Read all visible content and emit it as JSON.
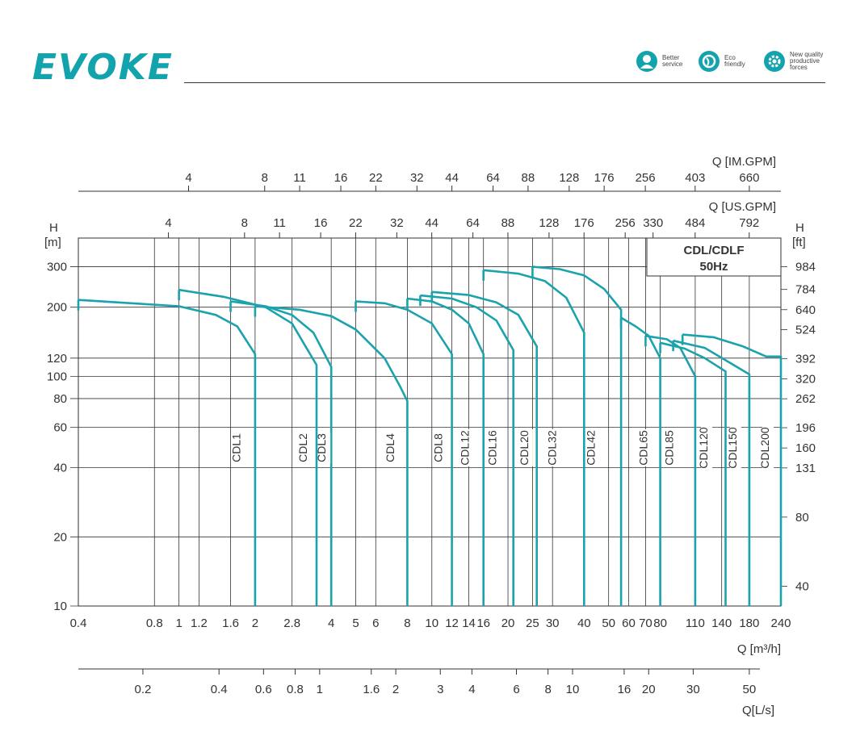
{
  "header": {
    "logo_text": "EVOKE",
    "badges": [
      {
        "icon": "service-person-icon",
        "label_line1": "Better",
        "label_line2": "service",
        "label_line3": ""
      },
      {
        "icon": "eco-globe-icon",
        "label_line1": "Eco",
        "label_line2": "friendly",
        "label_line3": ""
      },
      {
        "icon": "gear-icon",
        "label_line1": "New quality",
        "label_line2": "productive",
        "label_line3": "forces"
      }
    ],
    "accent_color": "#13a3ac"
  },
  "chart_data": {
    "type": "line",
    "title": "CDL/CDLF",
    "subtitle": "50Hz",
    "curve_color": "#1ba3ad",
    "xlabel": "Q [m³/h]",
    "ylabel_left": "H [m]",
    "ylabel_right": "H [ft]",
    "x_scale": "log",
    "y_scale": "log",
    "xlim": [
      0.4,
      240
    ],
    "ylim": [
      10,
      400
    ],
    "x_ticks": [
      "0.4",
      "0.8",
      "1",
      "1.2",
      "1.6",
      "2",
      "2.8",
      "4",
      "5",
      "6",
      "8",
      "10",
      "12",
      "14",
      "16",
      "20",
      "25",
      "30",
      "40",
      "50",
      "60",
      "70",
      "80",
      "110",
      "140",
      "180",
      "240"
    ],
    "x_ticks_values": [
      0.4,
      0.8,
      1,
      1.2,
      1.6,
      2,
      2.8,
      4,
      5,
      6,
      8,
      10,
      12,
      14,
      16,
      20,
      25,
      30,
      40,
      50,
      60,
      70,
      80,
      110,
      140,
      180,
      240
    ],
    "y_ticks_left": [
      "10",
      "20",
      "40",
      "60",
      "80",
      "100",
      "120",
      "200",
      "300"
    ],
    "y_ticks_left_values": [
      10,
      20,
      40,
      60,
      80,
      100,
      120,
      200,
      300
    ],
    "y_ticks_right": [
      "40",
      "80",
      "131",
      "160",
      "196",
      "262",
      "320",
      "392",
      "524",
      "640",
      "784",
      "984"
    ],
    "y_ticks_right_values": [
      40,
      80,
      131,
      160,
      196,
      262,
      320,
      392,
      524,
      640,
      784,
      984
    ],
    "axis_imgpm": {
      "label": "Q [IM.GPM]",
      "ticks": [
        "4",
        "8",
        "11",
        "16",
        "22",
        "32",
        "44",
        "64",
        "88",
        "128",
        "176",
        "256",
        "403",
        "660"
      ],
      "ticks_values": [
        4,
        8,
        11,
        16,
        22,
        32,
        44,
        64,
        88,
        128,
        176,
        256,
        403,
        660
      ]
    },
    "axis_usgpm": {
      "label": "Q [US.GPM]",
      "ticks": [
        "4",
        "8",
        "11",
        "16",
        "22",
        "32",
        "44",
        "64",
        "88",
        "128",
        "176",
        "256",
        "330",
        "484",
        "792"
      ],
      "ticks_values": [
        4,
        8,
        11,
        16,
        22,
        32,
        44,
        64,
        88,
        128,
        176,
        256,
        330,
        484,
        792
      ]
    },
    "axis_ls": {
      "label": "Q[L/s]",
      "ticks": [
        "0.2",
        "0.4",
        "0.6",
        "0.8",
        "1",
        "1.6",
        "2",
        "3",
        "4",
        "6",
        "8",
        "10",
        "16",
        "20",
        "30",
        "50"
      ],
      "ticks_values": [
        0.2,
        0.4,
        0.6,
        0.8,
        1,
        1.6,
        2,
        3,
        4,
        6,
        8,
        10,
        16,
        20,
        30,
        50
      ]
    },
    "series": [
      {
        "name": "CDL1",
        "label_x": 1.75,
        "points": [
          [
            0.4,
            215
          ],
          [
            0.7,
            207
          ],
          [
            1,
            202
          ],
          [
            1.4,
            185
          ],
          [
            1.7,
            165
          ],
          [
            2,
            125
          ]
        ]
      },
      {
        "name": "CDL2",
        "label_x": 3.2,
        "points": [
          [
            1,
            238
          ],
          [
            1.5,
            222
          ],
          [
            2.2,
            200
          ],
          [
            2.8,
            170
          ],
          [
            3.5,
            112
          ]
        ]
      },
      {
        "name": "CDL3",
        "label_x": 3.8,
        "points": [
          [
            1.6,
            212
          ],
          [
            2.2,
            202
          ],
          [
            2.8,
            185
          ],
          [
            3.4,
            155
          ],
          [
            4,
            110
          ]
        ]
      },
      {
        "name": "CDL4",
        "label_x": 7.1,
        "points": [
          [
            2,
            202
          ],
          [
            3,
            195
          ],
          [
            4,
            183
          ],
          [
            5,
            160
          ],
          [
            6.5,
            120
          ],
          [
            7.5,
            90
          ],
          [
            8,
            78
          ]
        ]
      },
      {
        "name": "CDL8",
        "label_x": 11,
        "points": [
          [
            5,
            212
          ],
          [
            6.5,
            208
          ],
          [
            8,
            195
          ],
          [
            10,
            170
          ],
          [
            12,
            125
          ]
        ]
      },
      {
        "name": "CDL12",
        "label_x": 14,
        "points": [
          [
            8,
            218
          ],
          [
            10,
            212
          ],
          [
            12,
            195
          ],
          [
            14,
            170
          ],
          [
            16,
            125
          ]
        ]
      },
      {
        "name": "CDL16",
        "label_x": 18,
        "points": [
          [
            9,
            225
          ],
          [
            12,
            218
          ],
          [
            15,
            200
          ],
          [
            18,
            175
          ],
          [
            21,
            130
          ]
        ]
      },
      {
        "name": "CDL20",
        "label_x": 24,
        "points": [
          [
            10,
            233
          ],
          [
            14,
            226
          ],
          [
            18,
            210
          ],
          [
            22,
            185
          ],
          [
            26,
            135
          ]
        ]
      },
      {
        "name": "CDL32",
        "label_x": 31,
        "points": [
          [
            16,
            290
          ],
          [
            22,
            280
          ],
          [
            28,
            260
          ],
          [
            34,
            220
          ],
          [
            40,
            155
          ]
        ]
      },
      {
        "name": "CDL42",
        "label_x": 44,
        "points": [
          [
            25,
            300
          ],
          [
            32,
            293
          ],
          [
            40,
            275
          ],
          [
            48,
            240
          ],
          [
            56,
            195
          ]
        ]
      },
      {
        "name": "CDL65",
        "label_x": 71,
        "points": [
          [
            56,
            180
          ],
          [
            64,
            165
          ],
          [
            72,
            150
          ],
          [
            80,
            120
          ]
        ]
      },
      {
        "name": "CDL85",
        "label_x": 90,
        "points": [
          [
            70,
            150
          ],
          [
            85,
            145
          ],
          [
            96,
            133
          ],
          [
            110,
            100
          ]
        ]
      },
      {
        "name": "CDL120",
        "label_x": 123,
        "points": [
          [
            80,
            140
          ],
          [
            100,
            132
          ],
          [
            120,
            120
          ],
          [
            145,
            105
          ]
        ]
      },
      {
        "name": "CDL150",
        "label_x": 160,
        "points": [
          [
            90,
            143
          ],
          [
            120,
            133
          ],
          [
            150,
            115
          ],
          [
            180,
            102
          ]
        ]
      },
      {
        "name": "CDL200",
        "label_x": 215,
        "points": [
          [
            98,
            152
          ],
          [
            130,
            148
          ],
          [
            170,
            135
          ],
          [
            210,
            122
          ],
          [
            240,
            122
          ]
        ]
      }
    ]
  }
}
